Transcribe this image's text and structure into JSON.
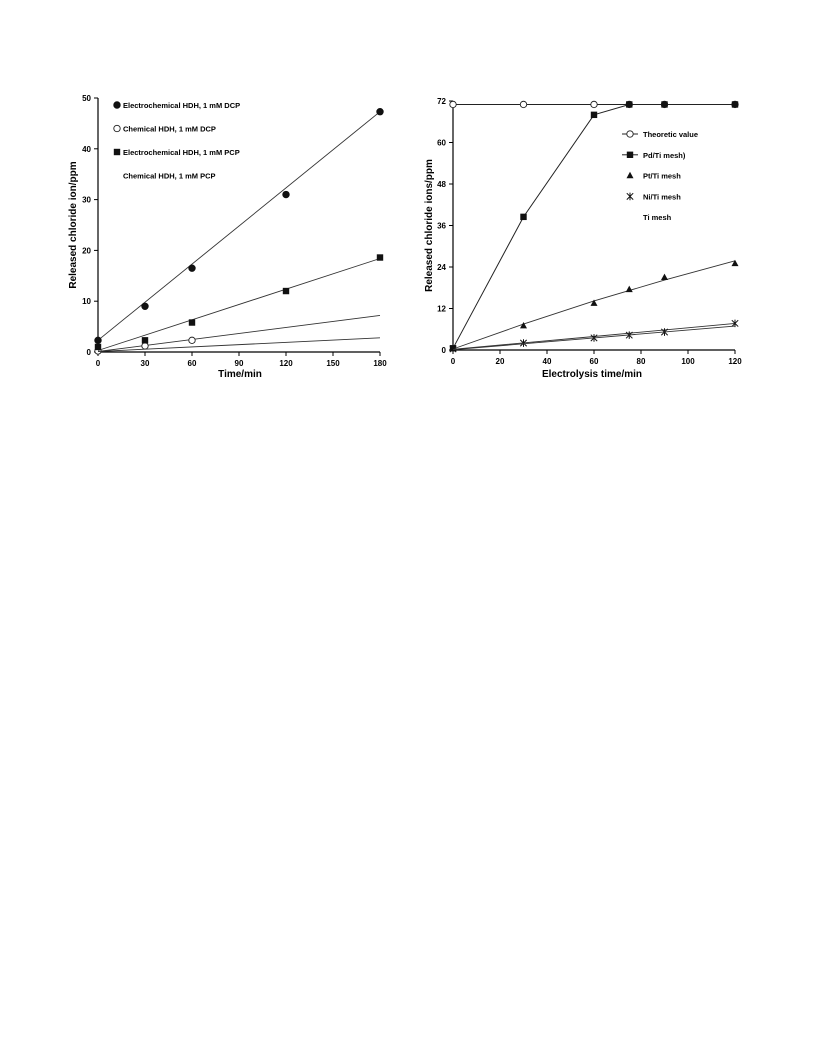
{
  "chart_data": [
    {
      "type": "scatter",
      "xlabel": "Time/min",
      "ylabel": "Released chloride ion/ppm",
      "xlim": [
        0,
        180
      ],
      "ylim": [
        0,
        50
      ],
      "xticks": [
        0,
        30,
        60,
        90,
        120,
        150,
        180
      ],
      "yticks": [
        0,
        10,
        20,
        30,
        40,
        50
      ],
      "grid": false,
      "legend_position": "top-left",
      "series": [
        {
          "name": "Electrochemical HDH, 1 mM DCP",
          "marker": "circle-filled",
          "x": [
            0,
            30,
            60,
            120,
            180
          ],
          "y": [
            2.3,
            9.0,
            16.5,
            31.0,
            47.3
          ],
          "fit": [
            [
              0,
              2.3
            ],
            [
              180,
              47.3
            ]
          ]
        },
        {
          "name": "Chemical HDH, 1 mM DCP",
          "marker": "circle-open",
          "x": [
            0,
            30,
            60
          ],
          "y": [
            0.2,
            1.2,
            2.3
          ],
          "fit": [
            [
              0,
              0.1
            ],
            [
              180,
              7.2
            ]
          ]
        },
        {
          "name": "Electrochemical HDH, 1 mM PCP",
          "marker": "square-filled",
          "x": [
            0,
            30,
            60,
            120,
            180
          ],
          "y": [
            1.0,
            2.3,
            5.8,
            12.0,
            18.6
          ],
          "fit": [
            [
              0,
              0.3
            ],
            [
              180,
              18.4
            ]
          ]
        },
        {
          "name": "Chemical HDH, 1 mM PCP",
          "marker": "none",
          "x": [],
          "y": [],
          "fit": [
            [
              0,
              0.1
            ],
            [
              180,
              2.8
            ]
          ]
        }
      ]
    },
    {
      "type": "line",
      "xlabel": "Electrolysis time/min",
      "ylabel": "Released chloride ions/ppm",
      "xlim": [
        0,
        120
      ],
      "ylim": [
        0,
        72
      ],
      "xticks": [
        0,
        20,
        40,
        60,
        80,
        100,
        120
      ],
      "yticks": [
        0,
        12,
        24,
        36,
        48,
        60,
        72
      ],
      "grid": false,
      "legend_position": "top-right",
      "series": [
        {
          "name": "Theoretic value",
          "marker": "circle-open",
          "x": [
            0,
            30,
            60,
            75,
            90,
            120
          ],
          "y": [
            71,
            71,
            71,
            71,
            71,
            71
          ],
          "line": "connect"
        },
        {
          "name": "Pd/Ti mesh)",
          "marker": "square-filled",
          "x": [
            0,
            30,
            60,
            75,
            90,
            120
          ],
          "y": [
            0.5,
            38.5,
            68,
            71,
            71,
            71
          ],
          "line": "connect"
        },
        {
          "name": "Pt/Ti mesh",
          "marker": "triangle-filled",
          "x": [
            0,
            30,
            60,
            75,
            90,
            120
          ],
          "y": [
            0.5,
            7,
            13.5,
            17.5,
            21,
            25
          ],
          "line": "fit",
          "fit": [
            [
              0,
              0.3
            ],
            [
              30,
              7.5
            ],
            [
              60,
              14.2
            ],
            [
              90,
              20.2
            ],
            [
              120,
              25.8
            ]
          ]
        },
        {
          "name": "Ni/Ti mesh",
          "marker": "asterisk",
          "x": [
            0,
            30,
            60,
            75,
            90,
            120
          ],
          "y": [
            0.3,
            2,
            3.5,
            4.3,
            5.2,
            7.7
          ],
          "line": "fit",
          "fit": [
            [
              0,
              0.2
            ],
            [
              60,
              3.9
            ],
            [
              120,
              7.7
            ]
          ]
        },
        {
          "name": "Ti mesh",
          "marker": "none",
          "x": [],
          "y": [],
          "line": "fit",
          "fit": [
            [
              0,
              0.1
            ],
            [
              60,
              3.5
            ],
            [
              120,
              6.9
            ]
          ]
        }
      ]
    }
  ]
}
